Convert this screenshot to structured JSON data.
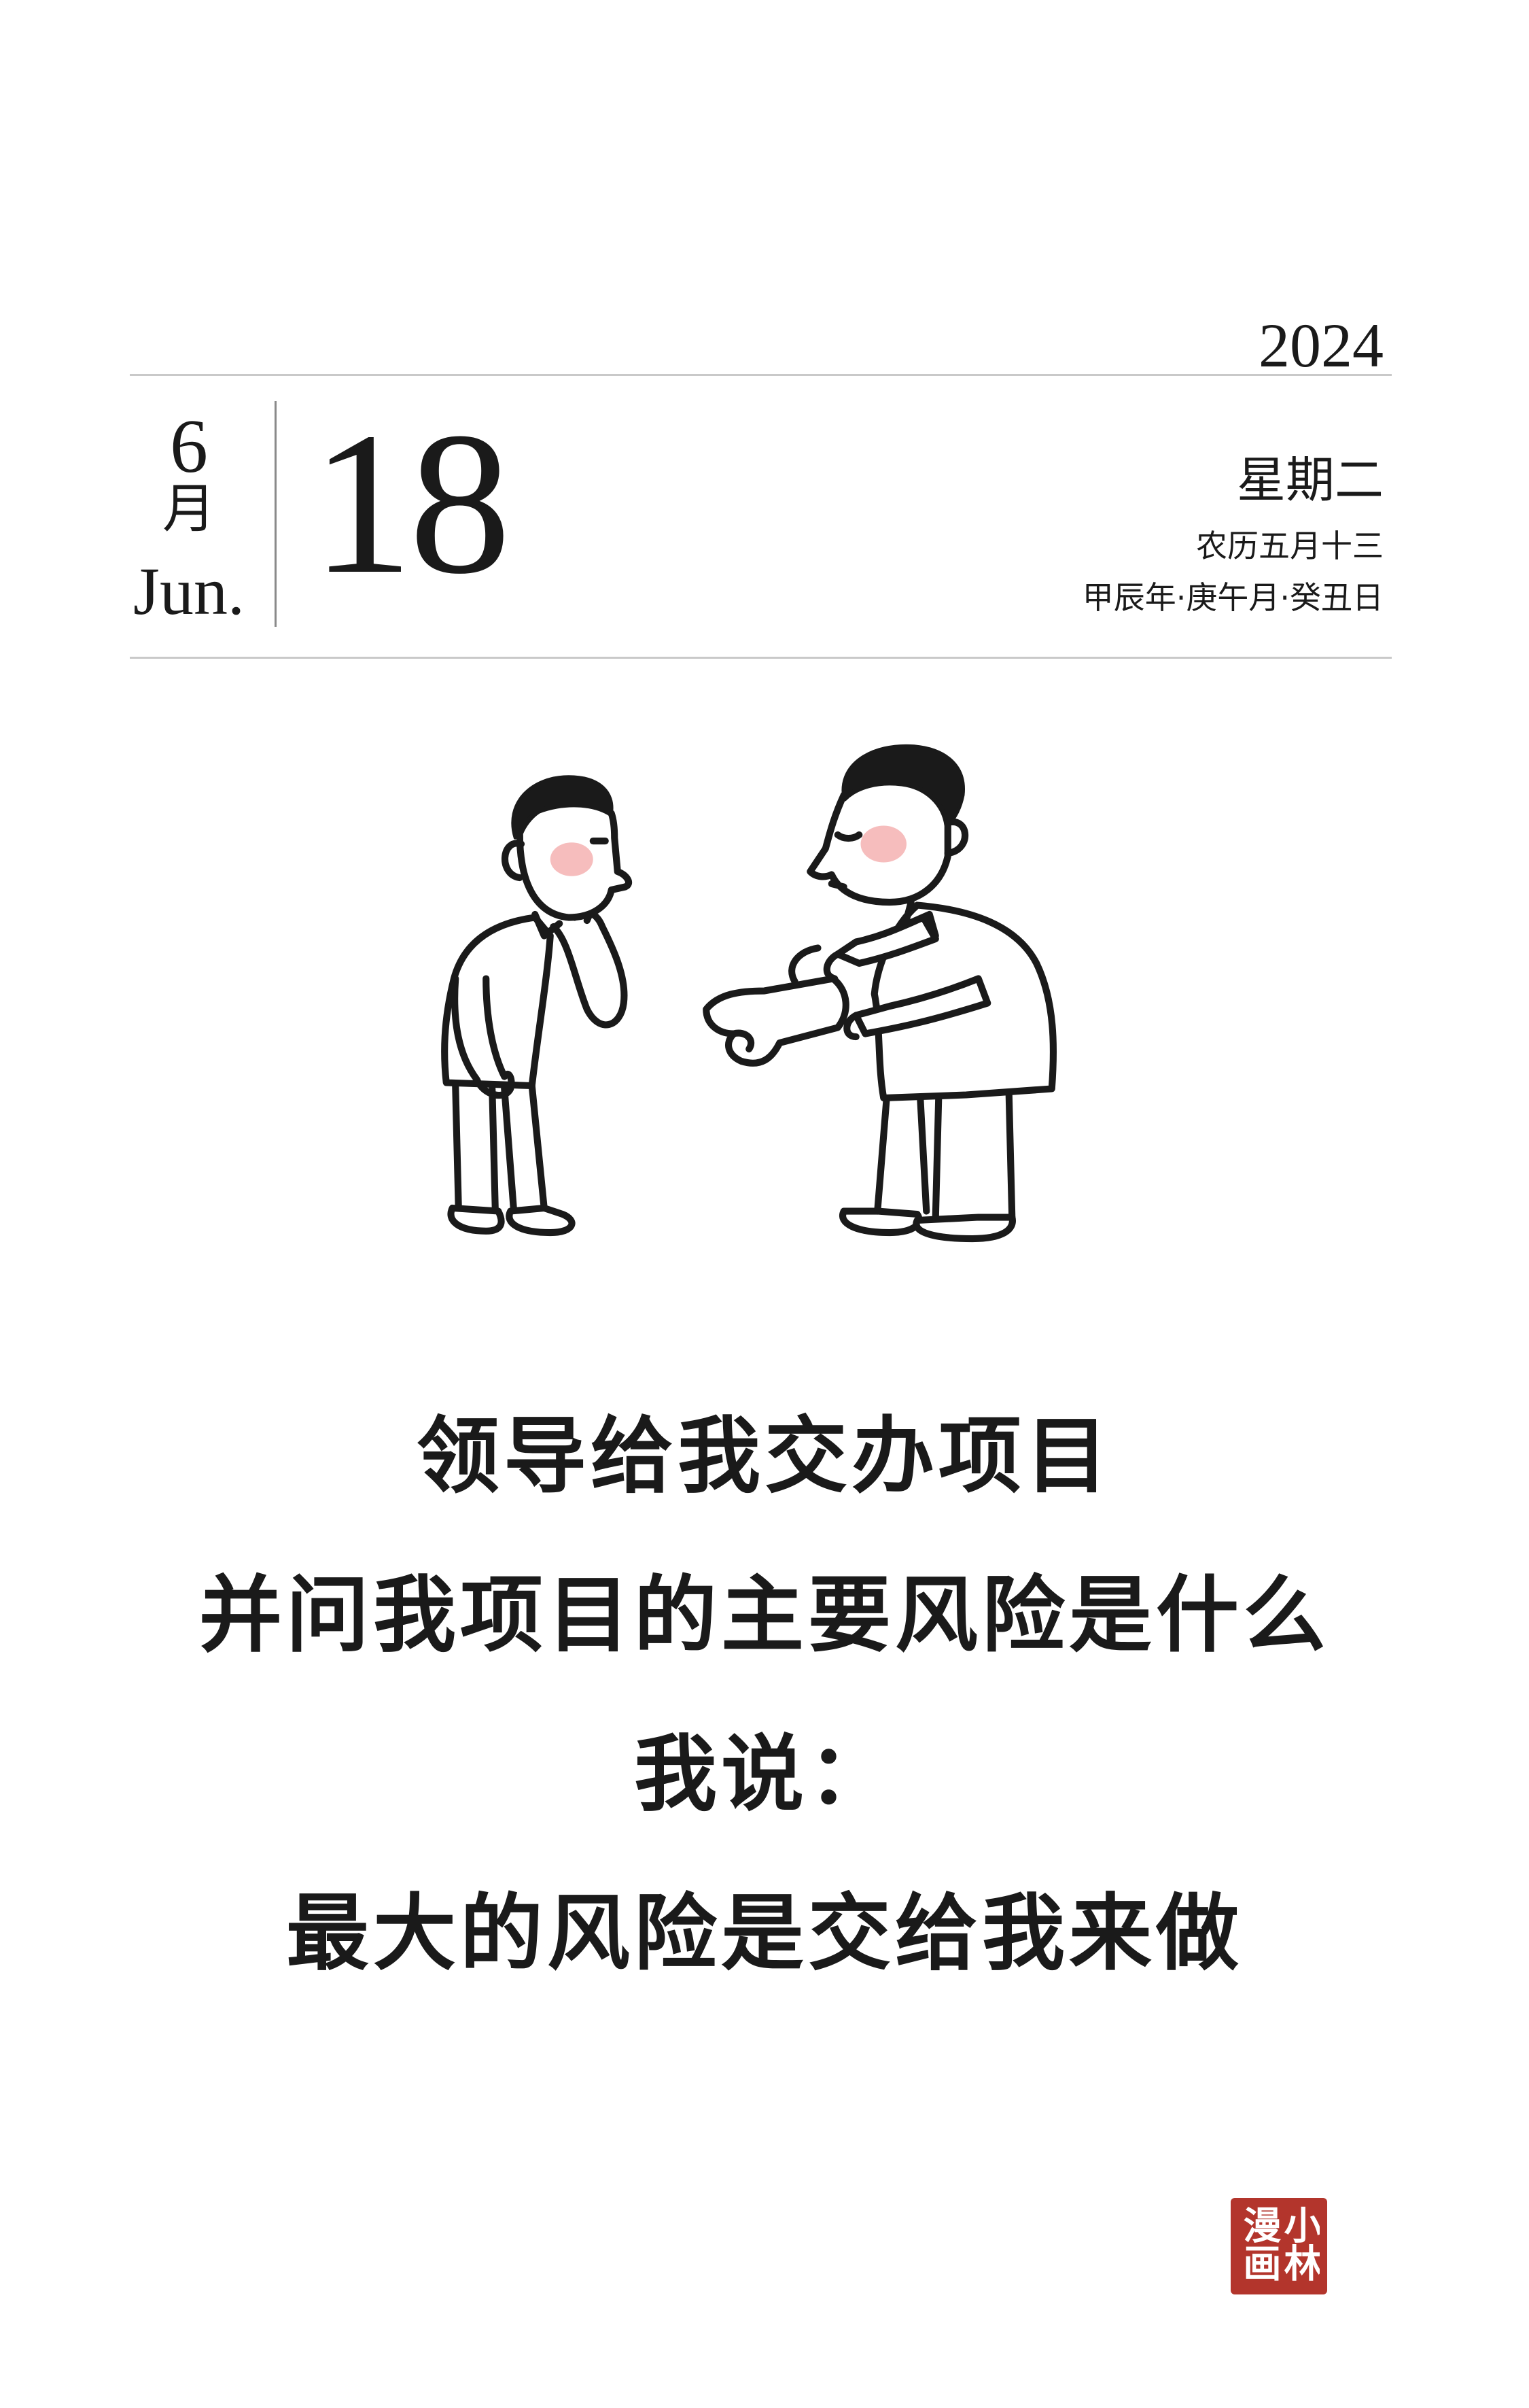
{
  "calendar": {
    "year": "2024",
    "month_number": "6",
    "month_cn": "月",
    "month_en": "Jun.",
    "day": "18",
    "weekday": "星期二",
    "lunar_date": "农历五月十三",
    "ganzhi_date": "甲辰年·庚午月·癸丑日"
  },
  "comic": {
    "caption_lines": [
      "领导给我交办项目",
      "并问我项目的主要风险是什么",
      "我说：",
      "最大的风险是交给我来做"
    ]
  },
  "seal": {
    "text": "小林漫画"
  },
  "colors": {
    "ink": "#1a1a1a",
    "rule": "#c9c9c9",
    "divider": "#8a8a8a",
    "seal": "#b3352c",
    "blush": "#f3a7a7",
    "paper": "#ffffff"
  }
}
